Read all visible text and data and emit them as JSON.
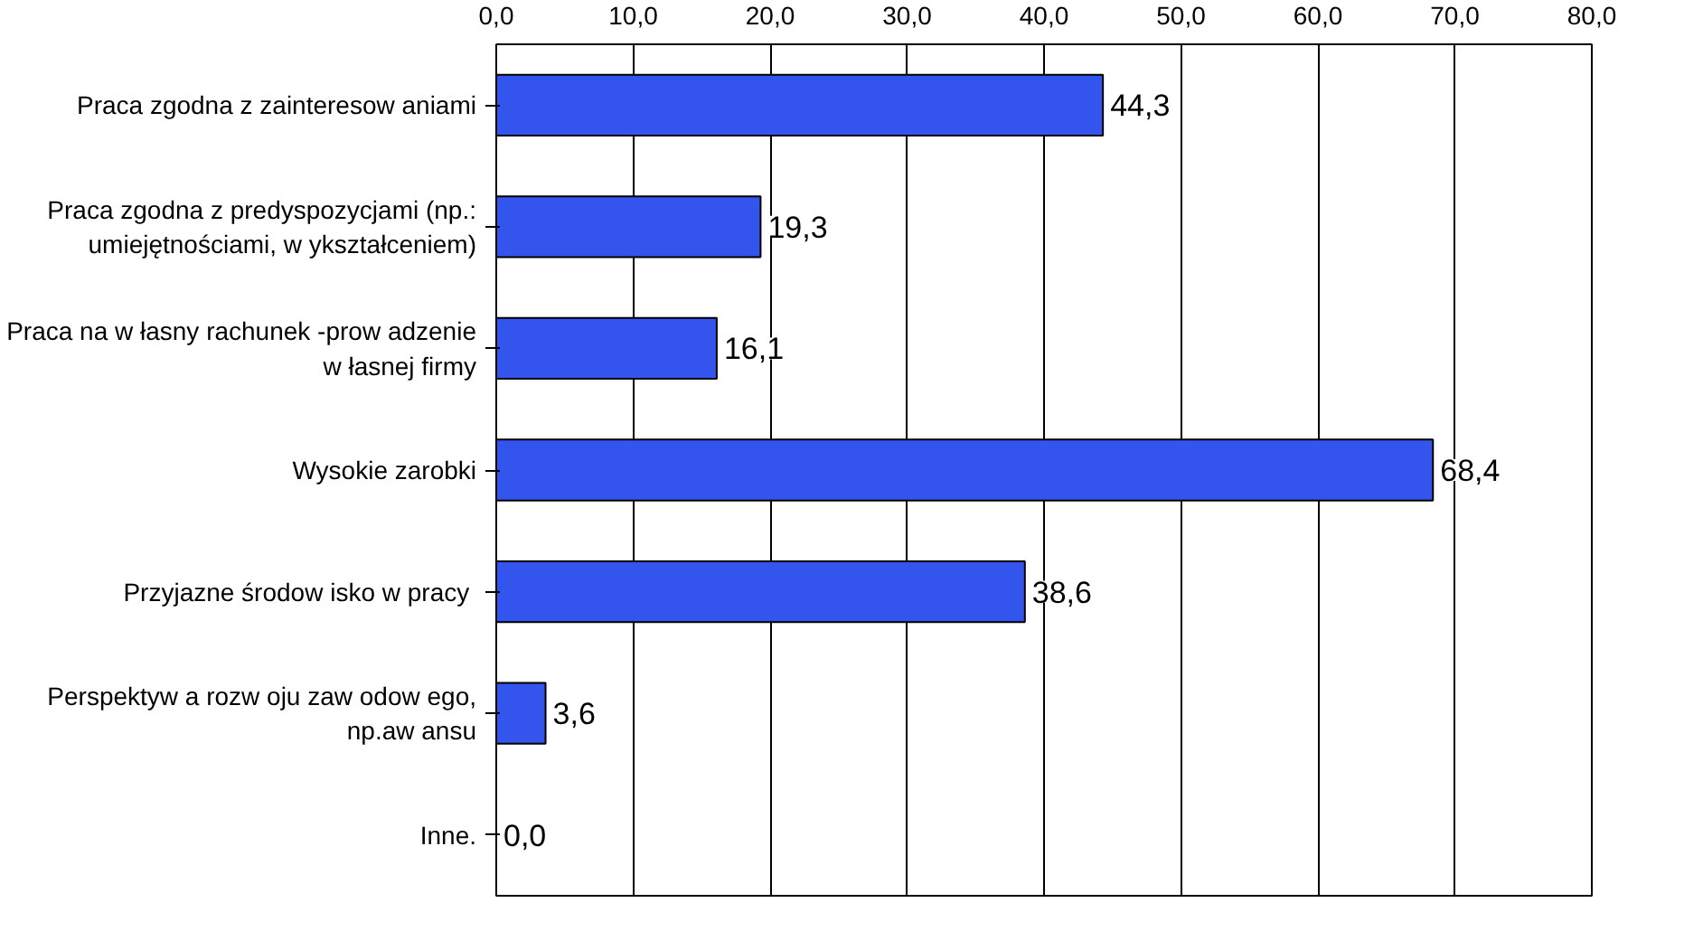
{
  "chart_data": {
    "type": "bar",
    "orientation": "horizontal",
    "categories": [
      "Praca zgodna z zainteresow aniami",
      "Praca zgodna z predyspozycjami (np.:\numiejętnościami, w ykształceniem)",
      "Praca na w łasny rachunek -prow adzenie\nw łasnej firmy",
      "Wysokie zarobki",
      "Przyjazne środow isko w  pracy",
      "Perspektyw a rozw oju zaw odow ego,\nnp.aw ansu",
      "Inne."
    ],
    "values": [
      44.3,
      19.3,
      16.1,
      68.4,
      38.6,
      3.6,
      0.0
    ],
    "value_labels": [
      "44,3",
      "19,3",
      "16,1",
      "68,4",
      "38,6",
      "3,6",
      "0,0"
    ],
    "color": "#3355ee",
    "xlim": [
      0,
      80
    ],
    "xticks": [
      {
        "value": 0,
        "label": "0,0"
      },
      {
        "value": 10,
        "label": "10,0"
      },
      {
        "value": 20,
        "label": "20,0"
      },
      {
        "value": 30,
        "label": "30,0"
      },
      {
        "value": 40,
        "label": "40,0"
      },
      {
        "value": 50,
        "label": "50,0"
      },
      {
        "value": 60,
        "label": "60,0"
      },
      {
        "value": 70,
        "label": "70,0"
      },
      {
        "value": 80,
        "label": "80,0"
      }
    ],
    "grid": "x"
  }
}
